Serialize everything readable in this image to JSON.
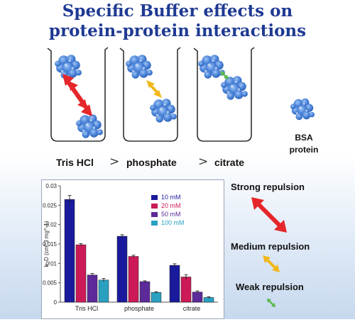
{
  "title": {
    "line1": "Specific Buffer effects on",
    "line2": "protein-protein interactions"
  },
  "colors": {
    "title": "#1f3a93",
    "protein": "#4a83d8",
    "arrow_strong": "#e5262a",
    "arrow_medium": "#f1b81c",
    "arrow_weak": "#5ab94c",
    "bar_10mM": "#1a1a9c",
    "bar_20mM": "#cc1a58",
    "bar_50mM": "#5c2a9a",
    "bar_100mM": "#2aa0c0"
  },
  "buffers": {
    "tris": "Tris HCl",
    "gt1": ">",
    "phosphate": "phosphate",
    "gt2": ">",
    "citrate": "citrate"
  },
  "bsa": {
    "line1": "BSA",
    "line2": "protein"
  },
  "repulsion": {
    "strong": "Strong repulsion",
    "medium": "Medium repulsion",
    "weak": "Weak repulsion"
  },
  "chart_data": {
    "type": "bar",
    "categories": [
      "Tris HCl",
      "phosphate",
      "citrate"
    ],
    "series": [
      {
        "name": "10 mM",
        "values": [
          0.0265,
          0.017,
          0.0095
        ],
        "errors": [
          0.001,
          0.0004,
          0.0004
        ]
      },
      {
        "name": "20 mM",
        "values": [
          0.0148,
          0.0118,
          0.0065
        ],
        "errors": [
          0.0003,
          0.0003,
          0.0006
        ]
      },
      {
        "name": "50 mM",
        "values": [
          0.007,
          0.0053,
          0.0026
        ],
        "errors": [
          0.0004,
          0.0002,
          0.0003
        ]
      },
      {
        "name": "100 mM",
        "values": [
          0.0057,
          0.0025,
          0.0012
        ],
        "errors": [
          0.0004,
          0.0002,
          0.0002
        ]
      }
    ],
    "ylabel": "k_D (cm^3 mg^-1)",
    "ylim": [
      0,
      0.03
    ],
    "yticks": [
      "0",
      "0.005",
      "0.01",
      "0.015",
      "0.02",
      "0.025",
      "0.03"
    ],
    "legend": "top-right",
    "grid": false
  }
}
